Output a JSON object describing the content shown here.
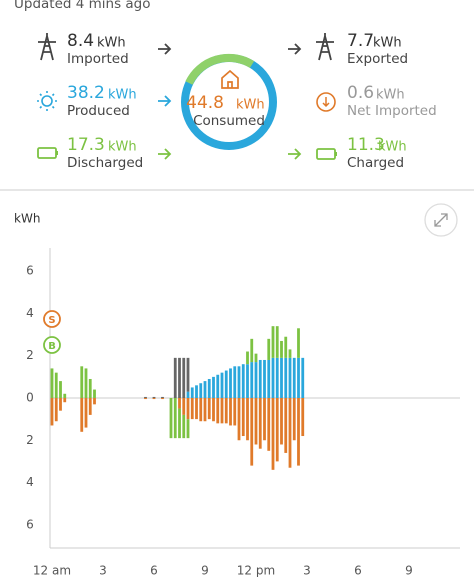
{
  "status": "Updated 4 mins ago",
  "summary": {
    "imported": {
      "value": 8.4,
      "unit": "kWh",
      "label": "Imported"
    },
    "produced": {
      "value": 38.2,
      "unit": "kWh",
      "label": "Produced"
    },
    "discharged": {
      "value": 17.3,
      "unit": "kWh",
      "label": "Discharged"
    },
    "consumed": {
      "value": 44.8,
      "unit": "kWh",
      "label": "Consumed"
    },
    "exported": {
      "value": 7.7,
      "unit": "kWh",
      "label": "Exported"
    },
    "net_imported": {
      "value": 0.6,
      "unit": "kWh",
      "label": "Net Imported"
    },
    "charged": {
      "value": 11.3,
      "unit": "kWh",
      "label": "Charged"
    }
  },
  "chart_data": {
    "type": "bar",
    "stacked": true,
    "y_label": "kWh",
    "x": [
      0,
      0.25,
      0.5,
      0.75,
      1.75,
      2,
      2.25,
      2.5,
      5.5,
      6,
      6.5,
      7,
      7.25,
      7.5,
      7.75,
      8,
      8.25,
      8.5,
      8.75,
      9,
      9.25,
      9.5,
      9.75,
      10,
      10.25,
      10.5,
      10.75,
      11,
      11.25,
      11.5,
      11.75,
      12,
      12.25,
      12.5,
      12.75,
      13,
      13.25,
      13.5,
      13.75,
      14,
      14.25,
      14.5,
      14.75
    ],
    "series": [
      {
        "color": "#2aa7dc",
        "values": [
          0,
          0,
          0,
          0,
          0,
          0,
          0,
          0,
          0,
          0,
          0,
          0,
          0,
          0,
          0,
          0.3,
          0.5,
          0.6,
          0.7,
          0.8,
          0.9,
          1.0,
          1.1,
          1.2,
          1.3,
          1.4,
          1.5,
          1.5,
          1.6,
          1.6,
          1.7,
          1.7,
          1.8,
          1.8,
          1.8,
          1.9,
          1.9,
          1.9,
          1.9,
          1.9,
          1.9,
          1.9,
          1.9
        ]
      },
      {
        "color": "#666666",
        "values": [
          0,
          0,
          0,
          0,
          0,
          0,
          0,
          0,
          0.05,
          0.05,
          0.05,
          0,
          1.9,
          1.9,
          1.9,
          1.6,
          0,
          0,
          0,
          0,
          0,
          0,
          0,
          0,
          0,
          0,
          0,
          0,
          0,
          0,
          0,
          0,
          0,
          0,
          0,
          0,
          0,
          0,
          0,
          0,
          0,
          0,
          0
        ]
      },
      {
        "color": "#7cc242",
        "values": [
          1.4,
          1.2,
          0.8,
          0.2,
          1.5,
          1.4,
          0.9,
          0.4,
          0,
          0,
          0,
          0,
          0,
          0,
          0,
          0,
          0,
          0,
          0,
          0,
          0,
          0,
          0,
          0,
          0,
          0,
          0,
          0,
          0,
          0.6,
          1.1,
          0.4,
          0,
          0,
          1.0,
          1.5,
          1.5,
          0.8,
          1.0,
          0.4,
          0,
          1.4,
          0
        ]
      },
      {
        "color": "#e07a2a",
        "values": [
          -1.3,
          -1.1,
          -0.6,
          -0.2,
          -1.6,
          -1.4,
          -0.8,
          -0.3,
          -0.05,
          -0.05,
          -0.05,
          0,
          0,
          -0.5,
          -0.8,
          -1.0,
          -1.0,
          -1.0,
          -1.1,
          -1.1,
          -1.0,
          -1.1,
          -1.2,
          -1.2,
          -1.2,
          -1.3,
          -1.3,
          -2.0,
          -1.8,
          -2.0,
          -3.2,
          -2.2,
          -2.4,
          -2.0,
          -2.5,
          -3.4,
          -3.0,
          -2.2,
          -2.6,
          -3.3,
          -2.0,
          -3.2,
          -1.8
        ]
      },
      {
        "color": "#7cc242",
        "values": [
          0,
          0,
          0,
          0,
          0,
          0,
          0,
          0,
          0,
          0,
          0,
          -1.9,
          -1.9,
          -1.4,
          -1.1,
          -0.9,
          0,
          0,
          0,
          0,
          0,
          0,
          0,
          0,
          0,
          0,
          0,
          0,
          0,
          0,
          0,
          0,
          0,
          0,
          0,
          0,
          0,
          0,
          0,
          0,
          0,
          0,
          0
        ]
      }
    ],
    "xlim": [
      0,
      24
    ],
    "xticks": [
      {
        "value": 0,
        "label": "12 am"
      },
      3,
      6,
      9,
      {
        "value": 12,
        "label": "12 pm"
      },
      {
        "value": 15,
        "label": "3"
      },
      {
        "value": 18,
        "label": "6"
      },
      {
        "value": 21,
        "label": "9"
      }
    ],
    "ylim": [
      -7.1,
      7.1
    ],
    "yticks": [
      6,
      4,
      2,
      0,
      {
        "value": -2,
        "label": "2"
      },
      {
        "value": -4,
        "label": "4"
      },
      {
        "value": -6,
        "label": "6"
      }
    ],
    "markers": [
      {
        "label": "S",
        "color": "#e07a2a"
      },
      {
        "label": "B",
        "color": "#7cc242"
      }
    ]
  }
}
